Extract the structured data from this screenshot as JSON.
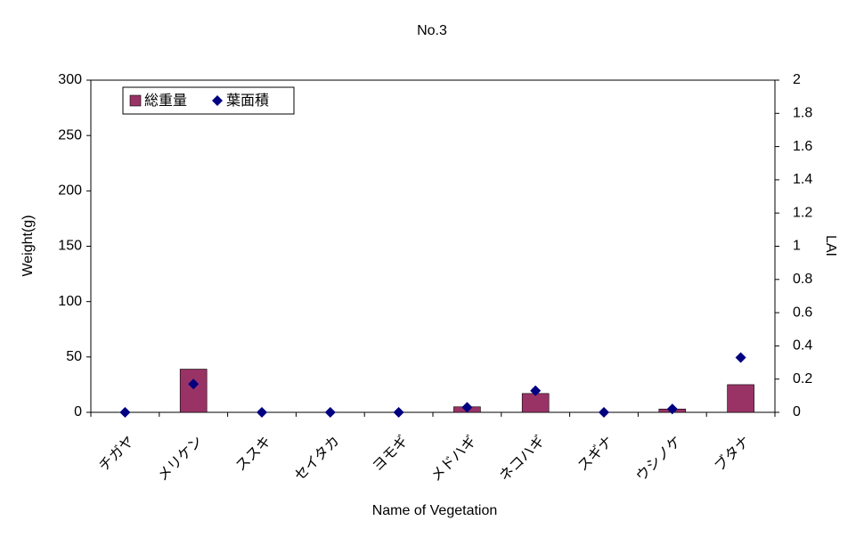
{
  "chart_data": {
    "type": "bar",
    "title": "No.3",
    "x_label": "Name of Vegetation",
    "y_label": "Weight(g)",
    "y2_label": "LAI",
    "categories": [
      "チガヤ",
      "メリケン",
      "ススキ",
      "セイタカ",
      "ヨモギ",
      "メドハギ",
      "ネコハギ",
      "スギナ",
      "ウシノケ",
      "ブタナ"
    ],
    "series": [
      {
        "name": "総重量",
        "type": "bar",
        "color": "#993366",
        "values": [
          0,
          39,
          0,
          0,
          0,
          5,
          17,
          0,
          3,
          25
        ]
      },
      {
        "name": "葉面積",
        "type": "scatter",
        "axis": "y2",
        "color": "#000080",
        "values": [
          0,
          0.17,
          0,
          0,
          0,
          0.03,
          0.13,
          0,
          0.02,
          0.33
        ]
      }
    ],
    "ylim": [
      0,
      300
    ],
    "yticks": [
      0,
      50,
      100,
      150,
      200,
      250,
      300
    ],
    "y2lim": [
      0,
      2
    ],
    "y2ticks": [
      0,
      0.2,
      0.4,
      0.6,
      0.8,
      1,
      1.2,
      1.4,
      1.6,
      1.8,
      2
    ],
    "legend": "upper left",
    "grid": false
  }
}
